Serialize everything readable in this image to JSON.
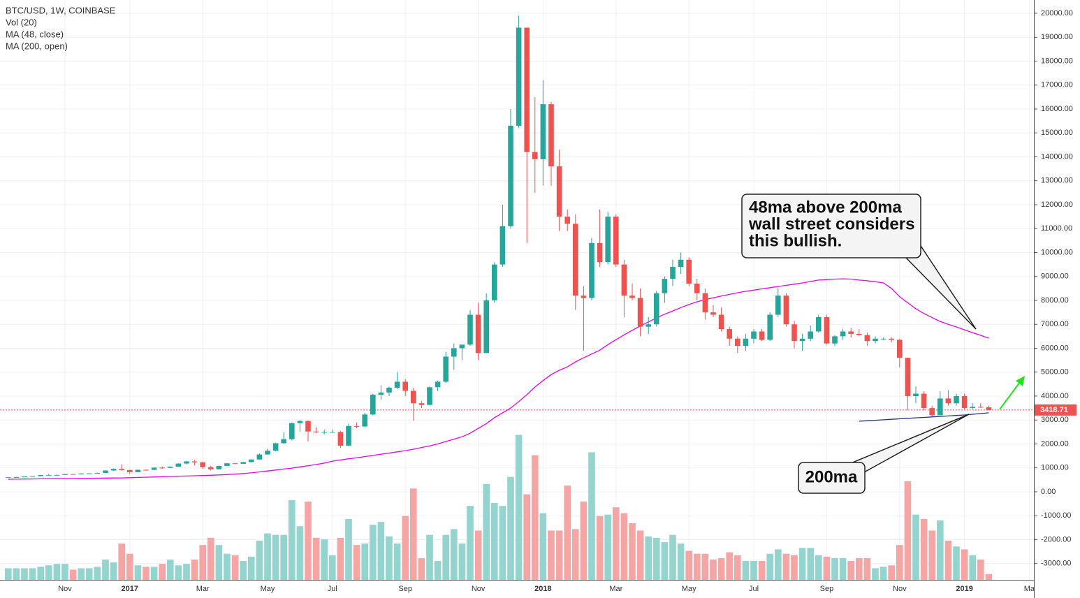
{
  "chart_data": {
    "type": "candlestick",
    "title": "BTC/USD, 1W, COINBASE",
    "up_color": "#26a69a",
    "down_color": "#ef5350",
    "grid": true,
    "categories": [
      null,
      null,
      null,
      null,
      null,
      null,
      null,
      "Nov",
      null,
      null,
      null,
      null,
      null,
      null,
      null,
      "2017",
      null,
      null,
      null,
      null,
      null,
      null,
      null,
      null,
      "Mar",
      null,
      null,
      null,
      null,
      null,
      null,
      null,
      "May",
      null,
      null,
      null,
      null,
      null,
      null,
      null,
      "Jul",
      null,
      null,
      null,
      null,
      null,
      null,
      null,
      null,
      "Sep",
      null,
      null,
      null,
      null,
      null,
      null,
      null,
      null,
      "Nov",
      null,
      null,
      null,
      null,
      null,
      null,
      null,
      "2018",
      null,
      null,
      null,
      null,
      null,
      null,
      null,
      null,
      "Mar",
      null,
      null,
      null,
      null,
      null,
      null,
      null,
      null,
      "May",
      null,
      null,
      null,
      null,
      null,
      null,
      null,
      "Jul",
      null,
      null,
      null,
      null,
      null,
      null,
      null,
      null,
      "Sep",
      null,
      null,
      null,
      null,
      null,
      null,
      null,
      null,
      "Nov",
      null,
      null,
      null,
      null,
      null,
      null,
      null,
      "2019",
      null,
      null,
      null,
      null,
      null,
      null,
      null,
      "Ma"
    ],
    "open": [
      600,
      608,
      617,
      640,
      655,
      700,
      705,
      705,
      740,
      730,
      765,
      770,
      790,
      890,
      960,
      910,
      820,
      920,
      915,
      1010,
      1000,
      1050,
      1180,
      1270,
      1230,
      1030,
      940,
      1080,
      1190,
      1170,
      1240,
      1350,
      1560,
      1720,
      2030,
      2200,
      2870,
      2960,
      2520,
      2500,
      2500,
      2500,
      1930,
      2750,
      2730,
      3230,
      4060,
      4150,
      4350,
      4600,
      4220,
      3700,
      3630,
      4370,
      4600,
      5650,
      6000,
      6150,
      7400,
      5800,
      8000,
      9500,
      11100,
      15300,
      19400,
      14200,
      13900,
      16200,
      13600,
      11500,
      11200,
      8200,
      8100,
      10400,
      9600,
      11500,
      9500,
      8200,
      8100,
      6900,
      7000,
      8300,
      8900,
      9400,
      9700,
      8700,
      8300,
      7500,
      7400,
      6800,
      6400,
      6100,
      6400,
      6700,
      6350,
      7400,
      8200,
      7000,
      6300,
      6400,
      6700,
      7300,
      6200,
      6500,
      6700,
      6600,
      6550,
      6300,
      6400,
      6400,
      6350,
      5600,
      4000,
      4100,
      3500,
      3200,
      3900,
      3700,
      4000,
      3500,
      3550,
      3530,
      null,
      null,
      null,
      null,
      null
    ],
    "high": [
      615,
      625,
      645,
      660,
      710,
      740,
      720,
      745,
      750,
      770,
      780,
      795,
      900,
      975,
      1150,
      925,
      935,
      925,
      1020,
      1060,
      1060,
      1190,
      1290,
      1330,
      1260,
      1080,
      1100,
      1200,
      1210,
      1250,
      1360,
      1600,
      1800,
      2050,
      2500,
      2900,
      3000,
      2980,
      2700,
      2600,
      2600,
      2550,
      2850,
      2900,
      3300,
      4100,
      4450,
      4400,
      5000,
      4700,
      4350,
      3800,
      4400,
      4650,
      5850,
      6200,
      6150,
      7600,
      7900,
      8300,
      9600,
      12000,
      16000,
      19900,
      19400,
      16500,
      17200,
      16300,
      14300,
      11800,
      11600,
      8600,
      10600,
      11800,
      11700,
      11600,
      9700,
      8700,
      8500,
      7300,
      8400,
      9000,
      9700,
      10000,
      9800,
      8900,
      8500,
      7800,
      7700,
      6900,
      6500,
      6600,
      6800,
      6800,
      7500,
      8500,
      8300,
      7150,
      6600,
      6950,
      7400,
      7400,
      6550,
      6800,
      6850,
      6800,
      6650,
      6500,
      6450,
      6450,
      6400,
      5600,
      4400,
      4200,
      3600,
      4200,
      4250,
      4100,
      4100,
      3700,
      3700,
      3600,
      null,
      null,
      null,
      null,
      null
    ],
    "low": [
      595,
      605,
      612,
      630,
      650,
      690,
      695,
      700,
      720,
      725,
      755,
      765,
      785,
      880,
      880,
      750,
      810,
      880,
      910,
      960,
      980,
      1040,
      1140,
      1100,
      960,
      890,
      930,
      1070,
      1150,
      1160,
      1230,
      1340,
      1550,
      1700,
      2000,
      2150,
      2500,
      2100,
      2450,
      2400,
      2480,
      1830,
      1900,
      2650,
      2700,
      3200,
      3850,
      4000,
      4300,
      4000,
      2970,
      3500,
      3600,
      4200,
      4550,
      5100,
      5500,
      6100,
      5500,
      5800,
      7900,
      9400,
      11000,
      15200,
      10400,
      12500,
      12800,
      12800,
      10900,
      10900,
      7600,
      5900,
      8000,
      9400,
      9500,
      9400,
      7300,
      8000,
      6500,
      6600,
      6900,
      7900,
      8600,
      9100,
      8600,
      8000,
      7200,
      7300,
      6700,
      6100,
      5800,
      5900,
      6200,
      6300,
      6300,
      7300,
      6900,
      6000,
      5900,
      6300,
      6650,
      6150,
      6100,
      6350,
      6450,
      6500,
      6100,
      6200,
      6350,
      6250,
      5200,
      3400,
      3700,
      3400,
      3150,
      3200,
      3600,
      3600,
      3450,
      3450,
      3500,
      3400,
      null,
      null,
      null,
      null,
      null
    ],
    "close": [
      608,
      617,
      640,
      655,
      700,
      705,
      705,
      740,
      730,
      765,
      770,
      790,
      890,
      960,
      910,
      820,
      920,
      915,
      1010,
      1000,
      1050,
      1180,
      1270,
      1230,
      1030,
      940,
      1080,
      1190,
      1170,
      1240,
      1350,
      1560,
      1720,
      2030,
      2200,
      2870,
      2960,
      2520,
      2500,
      2500,
      2500,
      1930,
      2750,
      2730,
      3230,
      4060,
      4150,
      4350,
      4600,
      4220,
      3700,
      3630,
      4370,
      4600,
      5650,
      6000,
      6150,
      7400,
      5800,
      8000,
      9500,
      11100,
      15300,
      19400,
      14200,
      13900,
      16200,
      13600,
      11500,
      11200,
      8200,
      8100,
      10400,
      9600,
      11500,
      9500,
      8200,
      8100,
      6900,
      7000,
      8300,
      8900,
      9400,
      9700,
      8700,
      8300,
      7500,
      7400,
      6800,
      6400,
      6100,
      6400,
      6700,
      6350,
      7400,
      8200,
      7000,
      6300,
      6400,
      6700,
      7300,
      6200,
      6500,
      6700,
      6600,
      6550,
      6300,
      6400,
      6400,
      6350,
      5600,
      4000,
      4100,
      3500,
      3200,
      3900,
      3700,
      4000,
      3500,
      3550,
      3530,
      3418.71,
      null,
      null,
      null,
      null,
      null
    ],
    "volume": {
      "name": "Vol (20)",
      "y2lim": [
        0,
        400
      ],
      "up_color": "#93d4ce",
      "down_color": "#f5a5a3",
      "values": [
        8,
        8,
        8,
        8,
        9,
        10,
        11,
        11,
        7,
        8,
        8,
        9,
        14,
        12,
        25,
        18,
        10,
        9,
        9,
        11,
        14,
        10,
        11,
        14,
        24,
        29,
        24,
        18,
        17,
        13,
        16,
        27,
        32,
        31,
        31,
        55,
        37,
        54,
        29,
        28,
        17,
        29,
        42,
        24,
        25,
        38,
        40,
        30,
        25,
        44,
        63,
        15,
        31,
        13,
        31,
        35,
        25,
        51,
        34,
        66,
        53,
        51,
        71,
        100,
        59,
        86,
        46,
        34,
        34,
        65,
        35,
        54,
        88,
        44,
        45,
        50,
        46,
        39,
        34,
        30,
        29,
        26,
        31,
        25,
        20,
        18,
        18,
        14,
        15,
        19,
        17,
        13,
        13,
        13,
        18,
        21,
        18,
        17,
        22,
        22,
        17,
        16,
        15,
        15,
        13,
        15,
        15,
        8,
        9,
        10,
        24,
        68,
        45,
        42,
        34,
        41,
        27,
        23,
        21,
        17,
        14,
        4,
        null,
        null,
        null,
        null,
        null
      ]
    },
    "series": [
      {
        "name": "MA (48, close)",
        "color": "#f000f0",
        "values": [
          525,
          529,
          533,
          537,
          541,
          545,
          549,
          553,
          557,
          561,
          565,
          569,
          573,
          577,
          580,
          590,
          600,
          610,
          620,
          630,
          640,
          650,
          660,
          670,
          680,
          690,
          705,
          720,
          740,
          765,
          790,
          830,
          870,
          910,
          950,
          990,
          1040,
          1090,
          1140,
          1200,
          1280,
          1330,
          1380,
          1420,
          1470,
          1520,
          1570,
          1620,
          1670,
          1720,
          1780,
          1850,
          1920,
          2000,
          2100,
          2200,
          2300,
          2450,
          2650,
          2850,
          3100,
          3300,
          3500,
          3770,
          4060,
          4380,
          4650,
          4900,
          5080,
          5220,
          5430,
          5600,
          5760,
          5920,
          6150,
          6360,
          6560,
          6750,
          6930,
          7100,
          7270,
          7420,
          7560,
          7700,
          7830,
          7940,
          8030,
          8110,
          8180,
          8250,
          8320,
          8380,
          8430,
          8480,
          8530,
          8580,
          8630,
          8680,
          8730,
          8790,
          8850,
          8870,
          8890,
          8900,
          8890,
          8850,
          8820,
          8780,
          8730,
          8500,
          8150,
          7900,
          7650,
          7450,
          7280,
          7120,
          7000,
          6890,
          6770,
          6650,
          6540,
          6420,
          null,
          null,
          null,
          null,
          null
        ]
      },
      {
        "name": "MA (200, open)",
        "color": "#21357a",
        "values": [
          null,
          null,
          null,
          null,
          null,
          null,
          null,
          null,
          null,
          null,
          null,
          null,
          null,
          null,
          null,
          null,
          null,
          null,
          null,
          null,
          null,
          null,
          null,
          null,
          null,
          null,
          null,
          null,
          null,
          null,
          null,
          null,
          null,
          null,
          null,
          null,
          null,
          null,
          null,
          null,
          null,
          null,
          null,
          null,
          null,
          null,
          null,
          null,
          null,
          null,
          null,
          null,
          null,
          null,
          null,
          null,
          null,
          null,
          null,
          null,
          null,
          null,
          null,
          null,
          null,
          null,
          null,
          null,
          null,
          null,
          null,
          null,
          null,
          null,
          null,
          null,
          null,
          null,
          null,
          null,
          null,
          null,
          null,
          null,
          null,
          null,
          null,
          null,
          null,
          null,
          null,
          null,
          null,
          null,
          null,
          null,
          null,
          null,
          null,
          null,
          null,
          null,
          null,
          null,
          null,
          2950,
          2970,
          2990,
          3010,
          3030,
          3050,
          3070,
          3090,
          3110,
          3130,
          3150,
          3170,
          3190,
          3210,
          3240,
          3270,
          3300,
          null,
          null,
          null,
          null,
          null
        ]
      }
    ],
    "ylim": [
      -3680,
      20555
    ],
    "yticks": [
      {
        "value": -3000,
        "label": "-3000.00"
      },
      {
        "value": -2000,
        "label": "-2000.00"
      },
      {
        "value": -1000,
        "label": "-1000.00"
      },
      {
        "value": 0,
        "label": "0.00"
      },
      {
        "value": 1000,
        "label": "1000.00"
      },
      {
        "value": 2000,
        "label": "2000.00"
      },
      {
        "value": 3000,
        "label": "3000.00"
      },
      {
        "value": 4000,
        "label": "4000.00"
      },
      {
        "value": 5000,
        "label": "5000.00"
      },
      {
        "value": 6000,
        "label": "6000.00"
      },
      {
        "value": 7000,
        "label": "7000.00"
      },
      {
        "value": 8000,
        "label": "8000.00"
      },
      {
        "value": 9000,
        "label": "9000.00"
      },
      {
        "value": 10000,
        "label": "10000.00"
      },
      {
        "value": 11000,
        "label": "11000.00"
      },
      {
        "value": 12000,
        "label": "12000.00"
      },
      {
        "value": 13000,
        "label": "13000.00"
      },
      {
        "value": 14000,
        "label": "14000.00"
      },
      {
        "value": 15000,
        "label": "15000.00"
      },
      {
        "value": 16000,
        "label": "16000.00"
      },
      {
        "value": 17000,
        "label": "17000.00"
      },
      {
        "value": 18000,
        "label": "18000.00"
      },
      {
        "value": 19000,
        "label": "19000.00"
      },
      {
        "value": 20000,
        "label": "20000.00"
      }
    ],
    "annotations": [
      {
        "text": [
          "48ma above 200ma",
          "wall street considers",
          "this bullish."
        ]
      },
      {
        "text": [
          "200ma"
        ]
      }
    ]
  }
}
